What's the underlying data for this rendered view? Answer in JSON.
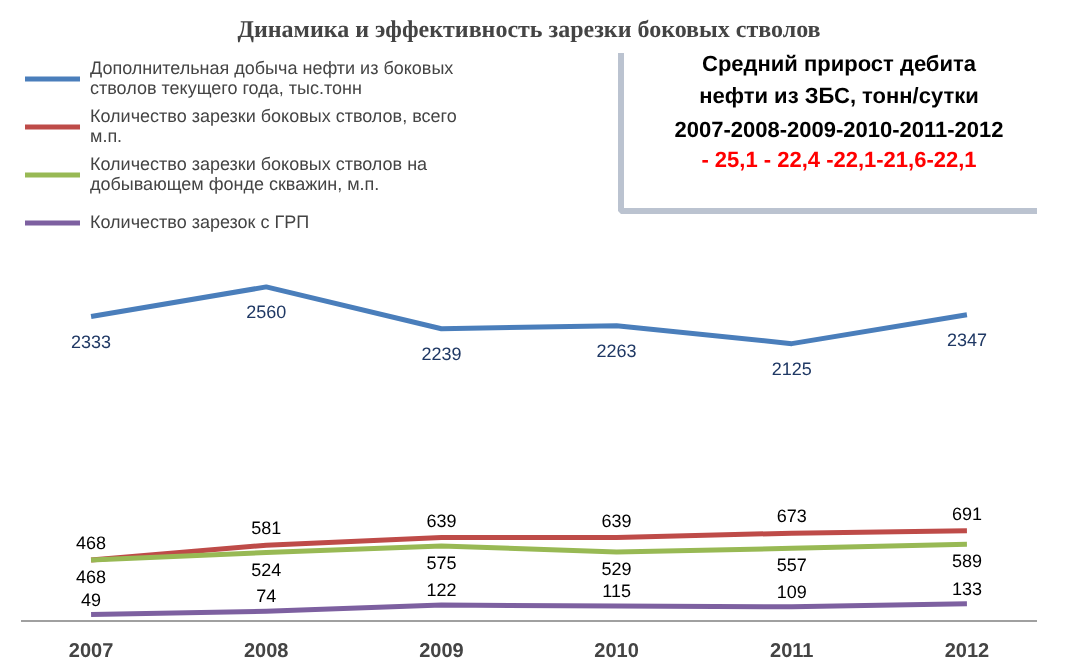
{
  "chart_data": {
    "type": "line",
    "title": "Динамика и эффективность зарезки боковых стволов",
    "categories": [
      "2007",
      "2008",
      "2009",
      "2010",
      "2011",
      "2012"
    ],
    "series": [
      {
        "name": "Дополнительная добыча нефти из боковых стволов текущего года, тыс.тонн",
        "color": "#4a7ebb",
        "values": [
          2333,
          2560,
          2239,
          2263,
          2125,
          2347
        ]
      },
      {
        "name": "Количество зарезки боковых стволов, всего м.п.",
        "color": "#be4b48",
        "values": [
          468,
          581,
          639,
          639,
          673,
          691
        ]
      },
      {
        "name": "Количество зарезки боковых стволов на добывающем фонде скважин, м.п.",
        "color": "#98b954",
        "values": [
          468,
          524,
          575,
          529,
          557,
          589
        ]
      },
      {
        "name": "Количество зарезок с ГРП",
        "color": "#7d60a0",
        "values": [
          49,
          74,
          122,
          115,
          109,
          133
        ]
      }
    ],
    "data_labels": true,
    "legend": "top left",
    "grid": false,
    "marker": "none",
    "line_style": "solid",
    "annotations": [
      "Средний прирост дебита нефти из ЗБС, тонн/сутки",
      "2007-2008-2009-2010-2011-2012",
      "- 25,1 - 22,4 -22,1-21,6-22,1"
    ]
  }
}
